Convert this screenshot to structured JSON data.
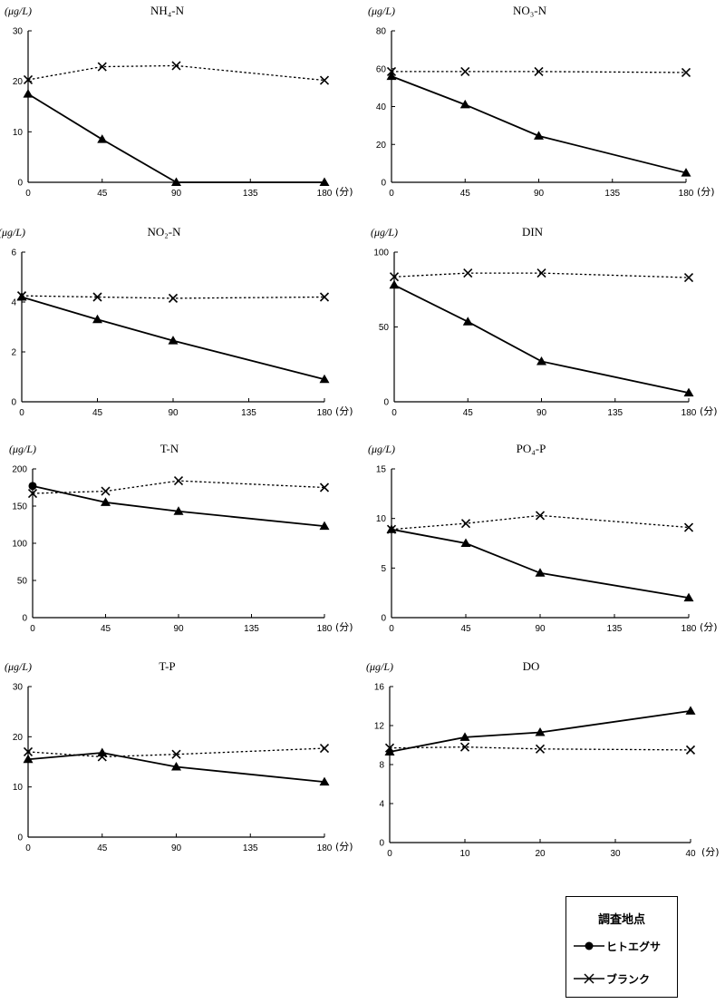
{
  "chart_data": [
    {
      "type": "line",
      "title": "NH₄-N",
      "unit": "(μg/L)",
      "xunit": "(分)",
      "xticks": [
        0,
        45,
        90,
        135,
        180
      ],
      "yticks": [
        0,
        10,
        20,
        30
      ],
      "ylim": [
        0,
        30
      ],
      "xlim": [
        0,
        180
      ],
      "series": [
        {
          "name": "ヒトエグサ",
          "x": [
            0,
            45,
            90,
            180
          ],
          "y": [
            17.5,
            8.5,
            0,
            0
          ]
        },
        {
          "name": "ブランク",
          "x": [
            0,
            45,
            90,
            180
          ],
          "y": [
            20.3,
            22.9,
            23.1,
            20.2
          ]
        }
      ]
    },
    {
      "type": "line",
      "title": "NO₃-N",
      "unit": "(μg/L)",
      "xunit": "(分)",
      "xticks": [
        0,
        45,
        90,
        135,
        180
      ],
      "yticks": [
        0,
        20,
        40,
        60,
        80
      ],
      "ylim": [
        0,
        80
      ],
      "xlim": [
        0,
        180
      ],
      "series": [
        {
          "name": "ヒトエグサ",
          "x": [
            0,
            45,
            90,
            180
          ],
          "y": [
            56,
            41,
            24.5,
            5
          ]
        },
        {
          "name": "ブランク",
          "x": [
            0,
            45,
            90,
            180
          ],
          "y": [
            58.5,
            58.5,
            58.5,
            58
          ]
        }
      ]
    },
    {
      "type": "line",
      "title": "NO₂-N",
      "unit": "(μg/L)",
      "xunit": "(分)",
      "xticks": [
        0,
        45,
        90,
        135,
        180
      ],
      "yticks": [
        0,
        2,
        4,
        6
      ],
      "ylim": [
        0,
        6
      ],
      "xlim": [
        0,
        180
      ],
      "series": [
        {
          "name": "ヒトエグサ",
          "x": [
            0,
            45,
            90,
            180
          ],
          "y": [
            4.2,
            3.3,
            2.45,
            0.9
          ]
        },
        {
          "name": "ブランク",
          "x": [
            0,
            45,
            90,
            180
          ],
          "y": [
            4.25,
            4.2,
            4.15,
            4.2
          ]
        }
      ]
    },
    {
      "type": "line",
      "title": "DIN",
      "unit": "(μg/L)",
      "xunit": "(分)",
      "xticks": [
        0,
        45,
        90,
        135,
        180
      ],
      "yticks": [
        0,
        50,
        100
      ],
      "ylim": [
        0,
        100
      ],
      "xlim": [
        0,
        180
      ],
      "series": [
        {
          "name": "ヒトエグサ",
          "x": [
            0,
            45,
            90,
            180
          ],
          "y": [
            78,
            53.5,
            27,
            6
          ]
        },
        {
          "name": "ブランク",
          "x": [
            0,
            45,
            90,
            180
          ],
          "y": [
            83.5,
            86,
            86,
            83
          ]
        }
      ]
    },
    {
      "type": "line",
      "title": "T-N",
      "unit": "(μg/L)",
      "xunit": "(分)",
      "xticks": [
        0,
        45,
        90,
        135,
        180
      ],
      "yticks": [
        0,
        50,
        100,
        150,
        200
      ],
      "ylim": [
        0,
        200
      ],
      "xlim": [
        0,
        180
      ],
      "series": [
        {
          "name": "ヒトエグサ",
          "x": [
            0,
            45,
            90,
            180
          ],
          "y": [
            177,
            155,
            143,
            123
          ]
        },
        {
          "name": "ブランク",
          "x": [
            0,
            45,
            90,
            180
          ],
          "y": [
            167,
            170,
            184,
            175
          ]
        }
      ]
    },
    {
      "type": "line",
      "title": "PO₄-P",
      "unit": "(μg/L)",
      "xunit": "(分)",
      "xticks": [
        0,
        45,
        90,
        135,
        180
      ],
      "yticks": [
        0,
        5,
        10,
        15
      ],
      "ylim": [
        0,
        15
      ],
      "xlim": [
        0,
        180
      ],
      "series": [
        {
          "name": "ヒトエグサ",
          "x": [
            0,
            45,
            90,
            180
          ],
          "y": [
            8.9,
            7.5,
            4.5,
            2
          ]
        },
        {
          "name": "ブランク",
          "x": [
            0,
            45,
            90,
            180
          ],
          "y": [
            8.9,
            9.5,
            10.3,
            9.1
          ]
        }
      ]
    },
    {
      "type": "line",
      "title": "T-P",
      "unit": "(μg/L)",
      "xunit": "(分)",
      "xticks": [
        0,
        45,
        90,
        135,
        180
      ],
      "yticks": [
        0,
        10,
        20,
        30
      ],
      "ylim": [
        0,
        30
      ],
      "xlim": [
        0,
        180
      ],
      "series": [
        {
          "name": "ヒトエグサ",
          "x": [
            0,
            45,
            90,
            180
          ],
          "y": [
            15.5,
            16.8,
            14,
            11
          ]
        },
        {
          "name": "ブランク",
          "x": [
            0,
            45,
            90,
            180
          ],
          "y": [
            17,
            16,
            16.5,
            17.7
          ]
        }
      ]
    },
    {
      "type": "line",
      "title": "DO",
      "unit": "(μg/L)",
      "xunit": "(分)",
      "xticks": [
        0,
        10,
        20,
        30,
        40
      ],
      "yticks": [
        0,
        4,
        8,
        12,
        16
      ],
      "ylim": [
        0,
        16
      ],
      "xlim": [
        0,
        40
      ],
      "series": [
        {
          "name": "ヒトエグサ",
          "x": [
            0,
            10,
            20,
            40
          ],
          "y": [
            9.3,
            10.8,
            11.3,
            13.5
          ]
        },
        {
          "name": "ブランク",
          "x": [
            0,
            10,
            20,
            40
          ],
          "y": [
            9.7,
            9.8,
            9.6,
            9.5
          ]
        }
      ]
    }
  ],
  "legend": {
    "title": "調査地点",
    "items": [
      {
        "label": "ヒトエグサ",
        "marker": "circle",
        "line": "solid"
      },
      {
        "label": "ブランク",
        "marker": "x",
        "line": "solid"
      }
    ]
  }
}
